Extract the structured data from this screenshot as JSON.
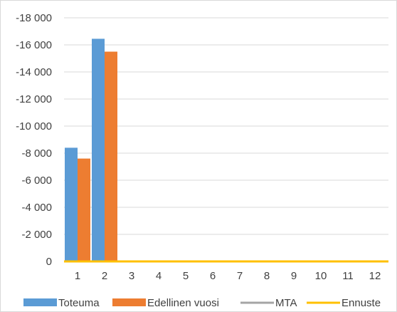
{
  "chart_data": {
    "type": "bar",
    "categories": [
      "1",
      "2",
      "3",
      "4",
      "5",
      "6",
      "7",
      "8",
      "9",
      "10",
      "11",
      "12"
    ],
    "series": [
      {
        "name": "Toteuma",
        "kind": "bar",
        "color": "#5b9bd5",
        "values": [
          -8400,
          -16450,
          null,
          null,
          null,
          null,
          null,
          null,
          null,
          null,
          null,
          null
        ]
      },
      {
        "name": "Edellinen vuosi",
        "kind": "bar",
        "color": "#ed7d31",
        "values": [
          -7600,
          -15500,
          null,
          null,
          null,
          null,
          null,
          null,
          null,
          null,
          null,
          null
        ]
      },
      {
        "name": "MTA",
        "kind": "line",
        "color": "#a5a5a5",
        "values": [
          0,
          0,
          0,
          0,
          0,
          0,
          0,
          0,
          0,
          0,
          0,
          0
        ]
      },
      {
        "name": "Ennuste",
        "kind": "line",
        "color": "#ffc000",
        "values": [
          0,
          0,
          0,
          0,
          0,
          0,
          0,
          0,
          0,
          0,
          0,
          0
        ]
      }
    ],
    "y_ticks": [
      0,
      -2000,
      -4000,
      -6000,
      -8000,
      -10000,
      -12000,
      -14000,
      -16000,
      -18000
    ],
    "y_tick_labels": [
      "0",
      "-2 000",
      "-4 000",
      "-6 000",
      "-8 000",
      "-10 000",
      "-12 000",
      "-14 000",
      "-16 000",
      "-18 000"
    ],
    "ylim": [
      0,
      -18000
    ],
    "y_axis_reversed": true,
    "grid": "horizontal",
    "legend_position": "bottom"
  }
}
